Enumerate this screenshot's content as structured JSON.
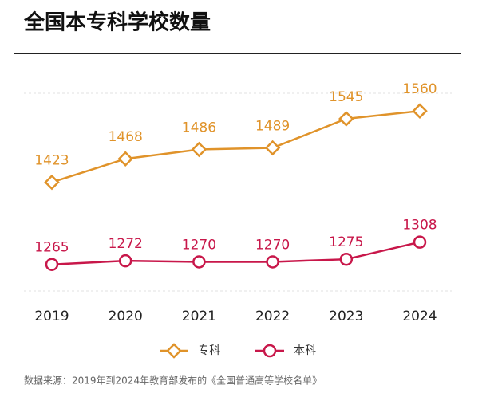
{
  "chart_data": {
    "type": "line",
    "title": "全国本专科学校数量",
    "categories": [
      "2019",
      "2020",
      "2021",
      "2022",
      "2023",
      "2024"
    ],
    "series": [
      {
        "name": "专科",
        "color": "#e0932a",
        "marker": "diamond",
        "values": [
          1423,
          1468,
          1486,
          1489,
          1545,
          1560
        ]
      },
      {
        "name": "本科",
        "color": "#c8174a",
        "marker": "circle",
        "values": [
          1265,
          1272,
          1270,
          1270,
          1275,
          1308
        ]
      }
    ],
    "ylim": [
      1214,
      1594
    ],
    "source": "数据来源：2019年到2024年教育部发布的《全国普通高等学校名单》"
  }
}
